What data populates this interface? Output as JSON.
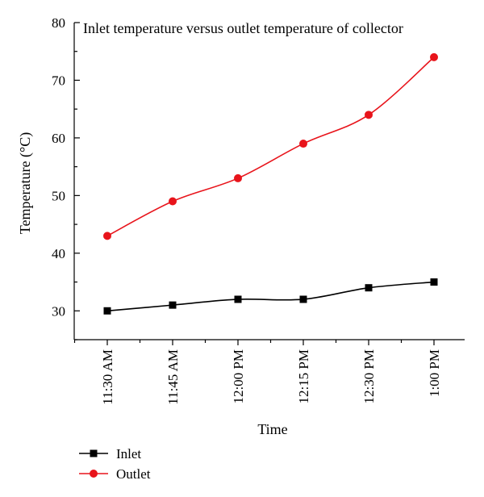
{
  "chart_data": {
    "type": "line",
    "title": "Inlet temperature versus outlet temperature of collector",
    "xlabel": "Time",
    "ylabel": "Temperature (°C)",
    "categories": [
      "11:30 AM",
      "11:45 AM",
      "12:00 PM",
      "12:15 PM",
      "12:30 PM",
      "1:00 PM"
    ],
    "ylim": [
      25,
      80
    ],
    "yticks": [
      30,
      40,
      50,
      60,
      70,
      80
    ],
    "grid": false,
    "legend_position": "bottom-left",
    "series": [
      {
        "name": "Inlet",
        "marker": "square",
        "color": "#000000",
        "values": [
          30,
          31,
          32,
          32,
          34,
          35
        ]
      },
      {
        "name": "Outlet",
        "marker": "circle",
        "color": "#e8141b",
        "values": [
          43,
          49,
          53,
          59,
          64,
          74
        ]
      }
    ]
  }
}
